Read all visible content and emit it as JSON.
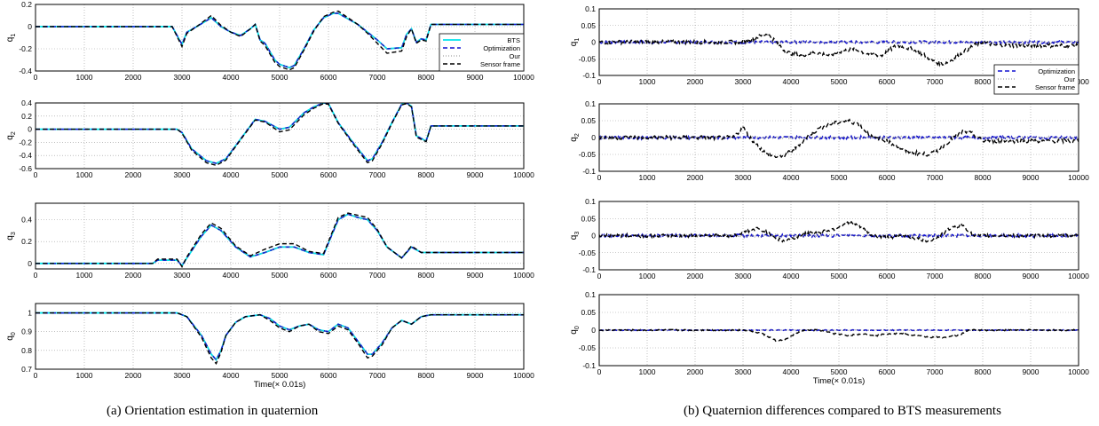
{
  "captions": {
    "left": "(a) Orientation estimation in quaternion",
    "right": "(b) Quaternion differences compared to BTS measurements"
  },
  "colors": {
    "bts": "#00e5ee",
    "optimization": "#1010d0",
    "our": "#8a8a8a",
    "sensor": "#000000",
    "grid": "#9a9a9a"
  },
  "chart_data": [
    {
      "type": "line",
      "title": "",
      "ylabel": "q1",
      "xlabel": "",
      "xlim": [
        0,
        10000
      ],
      "ylim": [
        -0.4,
        0.2
      ],
      "yticks": [
        "0.2",
        "0",
        "-0.2",
        "-0.4"
      ],
      "xticks": [
        "0",
        "1000",
        "2000",
        "3000",
        "4000",
        "5000",
        "6000",
        "7000",
        "8000",
        "9000",
        "10000"
      ],
      "grid": true,
      "legend": {
        "placement": "bottom-right",
        "entries": [
          "BTS",
          "Optimization",
          "Our",
          "Sensor frame"
        ]
      },
      "series": [
        {
          "name": "BTS",
          "x": [
            0,
            2800,
            3000,
            3100,
            3300,
            3600,
            3800,
            4000,
            4200,
            4400,
            4500,
            4600,
            4700,
            4900,
            5000,
            5200,
            5300,
            5500,
            5700,
            5900,
            6100,
            6200,
            6400,
            6600,
            6800,
            7000,
            7200,
            7500,
            7600,
            7700,
            7800,
            7900,
            8000,
            8100,
            9000,
            10000
          ],
          "y": [
            0.0,
            0.0,
            -0.16,
            -0.05,
            0.0,
            0.08,
            0.0,
            -0.05,
            -0.08,
            -0.02,
            0.02,
            -0.12,
            -0.15,
            -0.3,
            -0.34,
            -0.37,
            -0.35,
            -0.2,
            -0.03,
            0.08,
            0.12,
            0.12,
            0.07,
            0.02,
            -0.05,
            -0.12,
            -0.2,
            -0.19,
            -0.07,
            -0.02,
            -0.14,
            -0.11,
            -0.12,
            0.02,
            0.02,
            0.02
          ]
        },
        {
          "name": "Sensor frame",
          "x": [
            0,
            2800,
            3000,
            3100,
            3300,
            3600,
            3800,
            4000,
            4200,
            4400,
            4500,
            4600,
            4700,
            4900,
            5000,
            5200,
            5300,
            5500,
            5700,
            5900,
            6100,
            6200,
            6400,
            6600,
            6800,
            7000,
            7200,
            7500,
            7600,
            7700,
            7800,
            7900,
            8000,
            8100,
            9000,
            10000
          ],
          "y": [
            0.0,
            0.0,
            -0.18,
            -0.06,
            0.0,
            0.1,
            0.01,
            -0.05,
            -0.09,
            -0.02,
            0.02,
            -0.13,
            -0.17,
            -0.32,
            -0.36,
            -0.39,
            -0.37,
            -0.21,
            -0.04,
            0.09,
            0.13,
            0.14,
            0.08,
            0.02,
            -0.06,
            -0.15,
            -0.24,
            -0.22,
            -0.09,
            -0.02,
            -0.15,
            -0.12,
            -0.13,
            0.02,
            0.02,
            0.02
          ]
        }
      ]
    },
    {
      "type": "line",
      "title": "",
      "ylabel": "q2",
      "xlabel": "",
      "xlim": [
        0,
        10000
      ],
      "ylim": [
        -0.6,
        0.4
      ],
      "yticks": [
        "0.4",
        "0.2",
        "0",
        "-0.2",
        "-0.4",
        "-0.6"
      ],
      "xticks": [
        "0",
        "1000",
        "2000",
        "3000",
        "4000",
        "5000",
        "6000",
        "7000",
        "8000",
        "9000",
        "10000"
      ],
      "grid": true,
      "series": [
        {
          "name": "BTS",
          "x": [
            0,
            2900,
            3000,
            3200,
            3500,
            3700,
            3900,
            4200,
            4500,
            4700,
            5000,
            5200,
            5500,
            5700,
            5900,
            6000,
            6200,
            6500,
            6800,
            6900,
            7100,
            7300,
            7500,
            7600,
            7700,
            7800,
            8000,
            8100,
            10000
          ],
          "y": [
            0.0,
            0.0,
            -0.05,
            -0.3,
            -0.48,
            -0.52,
            -0.45,
            -0.15,
            0.15,
            0.12,
            0.0,
            0.03,
            0.25,
            0.34,
            0.4,
            0.39,
            0.1,
            -0.2,
            -0.48,
            -0.45,
            -0.2,
            0.1,
            0.38,
            0.4,
            0.35,
            -0.1,
            -0.18,
            0.05,
            0.05
          ]
        },
        {
          "name": "Sensor frame",
          "x": [
            0,
            2900,
            3000,
            3200,
            3500,
            3700,
            3900,
            4200,
            4500,
            4700,
            5000,
            5200,
            5500,
            5700,
            5900,
            6000,
            6200,
            6500,
            6800,
            6900,
            7100,
            7300,
            7500,
            7600,
            7700,
            7800,
            8000,
            8100,
            10000
          ],
          "y": [
            0.0,
            0.0,
            -0.06,
            -0.32,
            -0.51,
            -0.55,
            -0.47,
            -0.16,
            0.14,
            0.11,
            -0.04,
            -0.01,
            0.22,
            0.32,
            0.39,
            0.38,
            0.09,
            -0.22,
            -0.51,
            -0.48,
            -0.22,
            0.09,
            0.37,
            0.39,
            0.34,
            -0.12,
            -0.19,
            0.05,
            0.05
          ]
        }
      ]
    },
    {
      "type": "line",
      "title": "",
      "ylabel": "q3",
      "xlabel": "",
      "xlim": [
        0,
        10000
      ],
      "ylim": [
        -0.05,
        0.55
      ],
      "yticks": [
        "0.4",
        "0.2",
        "0"
      ],
      "xticks": [
        "0",
        "1000",
        "2000",
        "3000",
        "4000",
        "5000",
        "6000",
        "7000",
        "8000",
        "9000",
        "10000"
      ],
      "grid": true,
      "series": [
        {
          "name": "BTS",
          "x": [
            0,
            2400,
            2500,
            2900,
            3000,
            3100,
            3400,
            3600,
            3800,
            4100,
            4400,
            4700,
            5000,
            5300,
            5600,
            5900,
            6200,
            6400,
            6600,
            6800,
            7000,
            7200,
            7500,
            7700,
            7900,
            8100,
            10000
          ],
          "y": [
            0.0,
            0.0,
            0.03,
            0.03,
            -0.02,
            0.05,
            0.25,
            0.35,
            0.3,
            0.15,
            0.06,
            0.1,
            0.15,
            0.15,
            0.1,
            0.08,
            0.4,
            0.45,
            0.42,
            0.4,
            0.3,
            0.15,
            0.05,
            0.15,
            0.1,
            0.1,
            0.1
          ]
        },
        {
          "name": "Sensor frame",
          "x": [
            0,
            2400,
            2500,
            2900,
            3000,
            3100,
            3400,
            3600,
            3800,
            4100,
            4400,
            4700,
            5000,
            5300,
            5600,
            5900,
            6200,
            6400,
            6600,
            6800,
            7000,
            7200,
            7500,
            7700,
            7900,
            8100,
            10000
          ],
          "y": [
            0.0,
            0.0,
            0.04,
            0.04,
            -0.03,
            0.06,
            0.27,
            0.37,
            0.32,
            0.16,
            0.07,
            0.13,
            0.18,
            0.18,
            0.11,
            0.09,
            0.42,
            0.46,
            0.44,
            0.42,
            0.31,
            0.15,
            0.05,
            0.16,
            0.1,
            0.1,
            0.1
          ]
        }
      ]
    },
    {
      "type": "line",
      "title": "",
      "ylabel": "q0",
      "xlabel": "Time(× 0.01s)",
      "xlim": [
        0,
        10000
      ],
      "ylim": [
        0.7,
        1.05
      ],
      "yticks": [
        "1",
        "0.9",
        "0.8",
        "0.7"
      ],
      "xticks": [
        "0",
        "1000",
        "2000",
        "3000",
        "4000",
        "5000",
        "6000",
        "7000",
        "8000",
        "9000",
        "10000"
      ],
      "grid": true,
      "series": [
        {
          "name": "BTS",
          "x": [
            0,
            2900,
            3100,
            3400,
            3600,
            3700,
            3800,
            3900,
            4100,
            4300,
            4600,
            4800,
            5000,
            5200,
            5400,
            5600,
            5800,
            6000,
            6200,
            6400,
            6600,
            6800,
            6900,
            7100,
            7300,
            7500,
            7700,
            7900,
            8100,
            10000
          ],
          "y": [
            1.0,
            1.0,
            0.98,
            0.88,
            0.78,
            0.75,
            0.8,
            0.88,
            0.95,
            0.98,
            0.99,
            0.97,
            0.93,
            0.91,
            0.93,
            0.94,
            0.91,
            0.9,
            0.94,
            0.92,
            0.85,
            0.78,
            0.78,
            0.84,
            0.92,
            0.96,
            0.94,
            0.98,
            0.99,
            0.99
          ]
        },
        {
          "name": "Sensor frame",
          "x": [
            0,
            2900,
            3100,
            3400,
            3600,
            3700,
            3800,
            3900,
            4100,
            4300,
            4600,
            4800,
            5000,
            5200,
            5400,
            5600,
            5800,
            6000,
            6200,
            6400,
            6600,
            6800,
            6900,
            7100,
            7300,
            7500,
            7700,
            7900,
            8100,
            10000
          ],
          "y": [
            1.0,
            1.0,
            0.98,
            0.87,
            0.76,
            0.73,
            0.79,
            0.88,
            0.95,
            0.98,
            0.99,
            0.96,
            0.92,
            0.9,
            0.93,
            0.94,
            0.9,
            0.89,
            0.93,
            0.91,
            0.84,
            0.76,
            0.77,
            0.83,
            0.92,
            0.96,
            0.94,
            0.98,
            0.99,
            0.99
          ]
        }
      ]
    },
    {
      "type": "line",
      "title": "",
      "ylabel": "q1",
      "xlabel": "",
      "xlim": [
        0,
        10000
      ],
      "ylim": [
        -0.1,
        0.1
      ],
      "yticks": [
        "0.1",
        "0.05",
        "0",
        "-0.05",
        "-0.1"
      ],
      "xticks": [
        "0",
        "1000",
        "2000",
        "3000",
        "4000",
        "5000",
        "6000",
        "7000",
        "8000",
        "9000",
        "10000"
      ],
      "grid": true,
      "legend": {
        "placement": "bottom-right",
        "entries": [
          "Optimization",
          "Our",
          "Sensor frame"
        ]
      },
      "series": [
        {
          "name": "Optimization",
          "x": [
            0,
            10000
          ],
          "y": [
            0.0,
            0.0
          ],
          "noise": 0.004
        },
        {
          "name": "Our",
          "x": [
            0,
            10000
          ],
          "y": [
            0.0,
            0.0
          ],
          "noise": 0.004
        },
        {
          "name": "Sensor frame",
          "x": [
            0,
            2900,
            3200,
            3500,
            3700,
            3900,
            4200,
            4500,
            4800,
            5000,
            5300,
            5600,
            5900,
            6200,
            6500,
            6800,
            7000,
            7200,
            7500,
            7800,
            8000,
            8300,
            10000
          ],
          "y": [
            0.0,
            0.0,
            0.01,
            0.025,
            0.0,
            -0.03,
            -0.04,
            -0.03,
            -0.04,
            -0.03,
            -0.02,
            -0.035,
            -0.04,
            -0.01,
            -0.02,
            -0.04,
            -0.06,
            -0.065,
            -0.04,
            -0.01,
            0.0,
            -0.01,
            -0.01
          ],
          "noise": 0.006
        }
      ]
    },
    {
      "type": "line",
      "title": "",
      "ylabel": "q2",
      "xlabel": "",
      "xlim": [
        0,
        10000
      ],
      "ylim": [
        -0.1,
        0.1
      ],
      "yticks": [
        "0.1",
        "0.05",
        "0",
        "-0.05",
        "-0.1"
      ],
      "xticks": [
        "0",
        "1000",
        "2000",
        "3000",
        "4000",
        "5000",
        "6000",
        "7000",
        "8000",
        "9000",
        "10000"
      ],
      "grid": true,
      "series": [
        {
          "name": "Optimization",
          "x": [
            0,
            10000
          ],
          "y": [
            0.0,
            0.0
          ],
          "noise": 0.004
        },
        {
          "name": "Our",
          "x": [
            0,
            10000
          ],
          "y": [
            0.0,
            0.0
          ],
          "noise": 0.004
        },
        {
          "name": "Sensor frame",
          "x": [
            0,
            2800,
            3000,
            3200,
            3500,
            3800,
            4100,
            4400,
            4700,
            5000,
            5200,
            5400,
            5700,
            6000,
            6400,
            6800,
            7000,
            7300,
            7600,
            7800,
            8000,
            10000
          ],
          "y": [
            0.0,
            0.0,
            0.03,
            -0.01,
            -0.05,
            -0.06,
            -0.03,
            0.01,
            0.035,
            0.045,
            0.05,
            0.04,
            0.0,
            -0.01,
            -0.04,
            -0.05,
            -0.045,
            -0.01,
            0.02,
            0.01,
            -0.01,
            -0.01
          ],
          "noise": 0.006
        }
      ]
    },
    {
      "type": "line",
      "title": "",
      "ylabel": "q3",
      "xlabel": "",
      "xlim": [
        0,
        10000
      ],
      "ylim": [
        -0.1,
        0.1
      ],
      "yticks": [
        "0.1",
        "0.05",
        "0",
        "-0.05",
        "-0.1"
      ],
      "xticks": [
        "0",
        "1000",
        "2000",
        "3000",
        "4000",
        "5000",
        "6000",
        "7000",
        "8000",
        "9000",
        "10000"
      ],
      "grid": true,
      "series": [
        {
          "name": "Optimization",
          "x": [
            0,
            10000
          ],
          "y": [
            0.0,
            0.0
          ],
          "noise": 0.004
        },
        {
          "name": "Our",
          "x": [
            0,
            10000
          ],
          "y": [
            0.0,
            0.0
          ],
          "noise": 0.004
        },
        {
          "name": "Sensor frame",
          "x": [
            0,
            2800,
            3000,
            3300,
            3500,
            3800,
            4000,
            4300,
            4600,
            4900,
            5200,
            5400,
            5700,
            6000,
            6400,
            6800,
            7000,
            7300,
            7600,
            7800,
            8000,
            10000
          ],
          "y": [
            0.0,
            0.0,
            0.01,
            0.02,
            0.01,
            -0.015,
            -0.01,
            0.005,
            0.01,
            0.02,
            0.04,
            0.03,
            0.0,
            -0.005,
            0.0,
            -0.015,
            -0.01,
            0.02,
            0.03,
            0.0,
            0.0,
            0.0
          ],
          "noise": 0.005
        }
      ]
    },
    {
      "type": "line",
      "title": "",
      "ylabel": "q0",
      "xlabel": "Time(× 0.01s)",
      "xlim": [
        0,
        10000
      ],
      "ylim": [
        -0.1,
        0.1
      ],
      "yticks": [
        "0.1",
        "0.05",
        "0",
        "-0.05",
        "-0.1"
      ],
      "xticks": [
        "0",
        "1000",
        "2000",
        "3000",
        "4000",
        "5000",
        "6000",
        "7000",
        "8000",
        "9000",
        "10000"
      ],
      "grid": true,
      "series": [
        {
          "name": "Optimization",
          "x": [
            0,
            10000
          ],
          "y": [
            0.0,
            0.0
          ],
          "noise": 0.001
        },
        {
          "name": "Our",
          "x": [
            0,
            10000
          ],
          "y": [
            0.0,
            0.0
          ],
          "noise": 0.001
        },
        {
          "name": "Sensor frame",
          "x": [
            0,
            3100,
            3400,
            3700,
            3900,
            4100,
            4300,
            4600,
            4900,
            5200,
            5500,
            5800,
            6000,
            6300,
            6600,
            6900,
            7200,
            7500,
            7700,
            10000
          ],
          "y": [
            0.0,
            0.0,
            -0.01,
            -0.03,
            -0.025,
            -0.01,
            0.0,
            0.0,
            -0.01,
            -0.015,
            -0.01,
            -0.015,
            -0.01,
            -0.01,
            -0.015,
            -0.02,
            -0.02,
            -0.015,
            0.0,
            0.0
          ],
          "noise": 0.002
        }
      ]
    }
  ]
}
